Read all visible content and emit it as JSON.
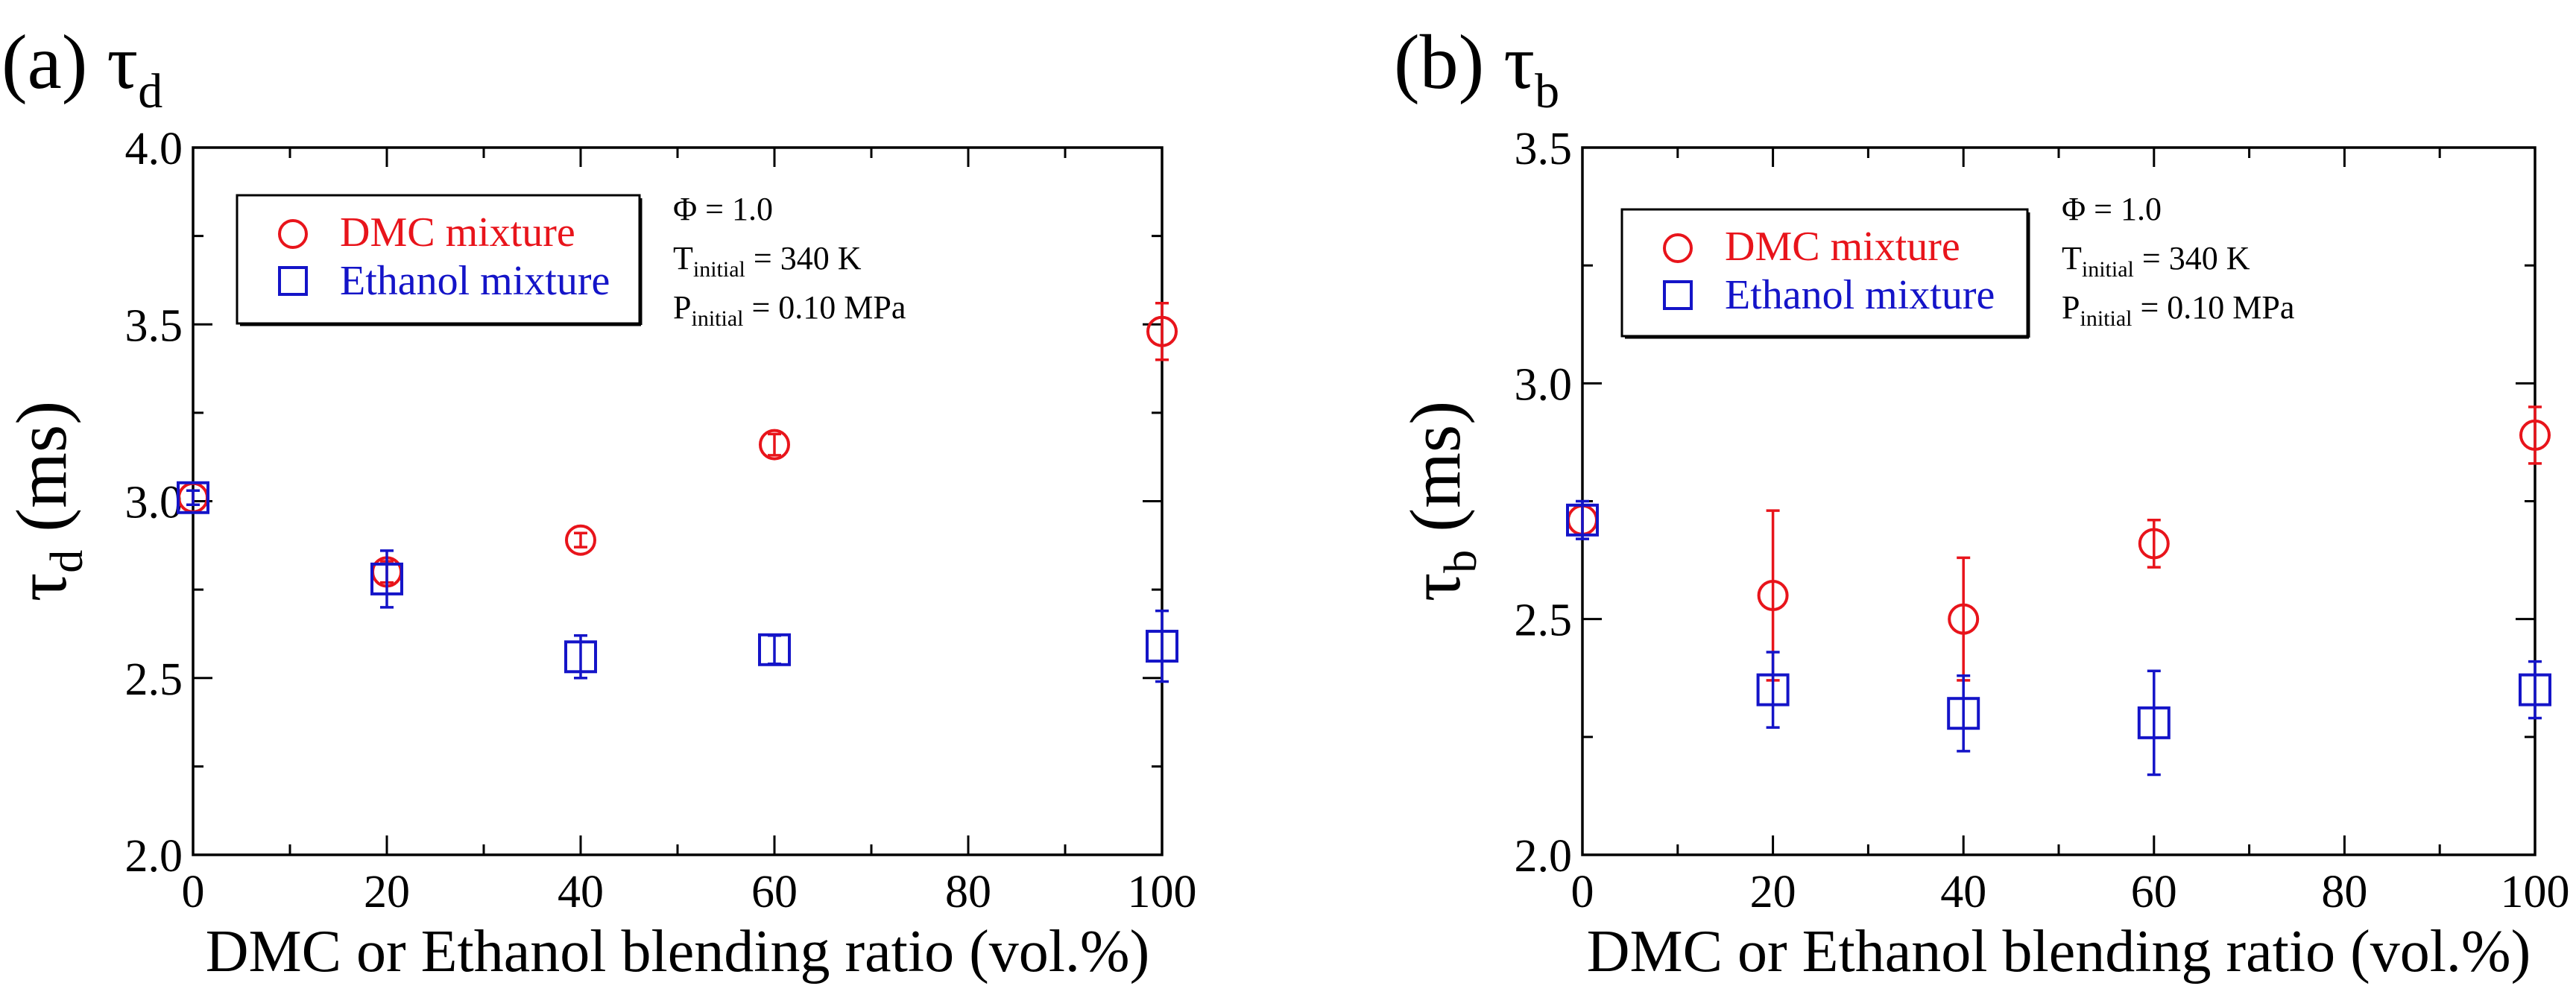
{
  "colors": {
    "dmc": "#e8141b",
    "ethanol": "#1414c8",
    "axis": "#000000"
  },
  "chart_data": [
    {
      "type": "scatter",
      "panel_label": "(a)",
      "panel_symbol": "τ",
      "panel_subscript": "d",
      "title": "(a) τd",
      "xlabel": "DMC or Ethanol blending ratio (vol.%)",
      "ylabel": "τd (ms)",
      "ylabel_symbol": "τ",
      "ylabel_subscript": "d",
      "ylabel_unit": "(ms)",
      "xlim": [
        0,
        100
      ],
      "ylim": [
        2.0,
        4.0
      ],
      "xticks": [
        "0",
        "20",
        "40",
        "60",
        "80",
        "100"
      ],
      "yticks": [
        "2.0",
        "2.5",
        "3.0",
        "3.5",
        "4.0"
      ],
      "legend": [
        "DMC mixture",
        "Ethanol mixture"
      ],
      "conditions": {
        "phi": "Φ = 1.0",
        "t_prefix": "T",
        "t_sub": "initial",
        "t_value": " = 340 K",
        "p_prefix": "P",
        "p_sub": "initial",
        "p_value": " = 0.10 MPa"
      },
      "series": [
        {
          "name": "DMC mixture",
          "marker": "circle",
          "points": [
            {
              "x": 0,
              "y": 3.01,
              "err": 0.02
            },
            {
              "x": 20,
              "y": 2.8,
              "err": 0.03
            },
            {
              "x": 40,
              "y": 2.89,
              "err": 0.02
            },
            {
              "x": 60,
              "y": 3.16,
              "err": 0.03
            },
            {
              "x": 100,
              "y": 3.48,
              "err": 0.08
            }
          ]
        },
        {
          "name": "Ethanol mixture",
          "marker": "square",
          "points": [
            {
              "x": 0,
              "y": 3.01,
              "err": 0.02
            },
            {
              "x": 20,
              "y": 2.78,
              "err": 0.08
            },
            {
              "x": 40,
              "y": 2.56,
              "err": 0.06
            },
            {
              "x": 60,
              "y": 2.58,
              "err": 0.04
            },
            {
              "x": 100,
              "y": 2.59,
              "err": 0.1
            }
          ]
        }
      ]
    },
    {
      "type": "scatter",
      "panel_label": "(b)",
      "panel_symbol": "τ",
      "panel_subscript": "b",
      "title": "(b) τb",
      "xlabel": "DMC or Ethanol blending ratio (vol.%)",
      "ylabel": "τb (ms)",
      "ylabel_symbol": "τ",
      "ylabel_subscript": "b",
      "ylabel_unit": "(ms)",
      "xlim": [
        0,
        100
      ],
      "ylim": [
        2.0,
        3.5
      ],
      "xticks": [
        "0",
        "20",
        "40",
        "60",
        "80",
        "100"
      ],
      "yticks": [
        "2.0",
        "2.5",
        "3.0",
        "3.5"
      ],
      "legend": [
        "DMC mixture",
        "Ethanol mixture"
      ],
      "conditions": {
        "phi": "Φ = 1.0",
        "t_prefix": "T",
        "t_sub": "initial",
        "t_value": " = 340 K",
        "p_prefix": "P",
        "p_sub": "initial",
        "p_value": " = 0.10 MPa"
      },
      "series": [
        {
          "name": "DMC mixture",
          "marker": "circle",
          "points": [
            {
              "x": 0,
              "y": 2.71,
              "err": 0.03
            },
            {
              "x": 20,
              "y": 2.55,
              "err": 0.18
            },
            {
              "x": 40,
              "y": 2.5,
              "err": 0.13
            },
            {
              "x": 60,
              "y": 2.66,
              "err": 0.05
            },
            {
              "x": 100,
              "y": 2.89,
              "err": 0.06
            }
          ]
        },
        {
          "name": "Ethanol mixture",
          "marker": "square",
          "points": [
            {
              "x": 0,
              "y": 2.71,
              "err": 0.04
            },
            {
              "x": 20,
              "y": 2.35,
              "err": 0.08
            },
            {
              "x": 40,
              "y": 2.3,
              "err": 0.08
            },
            {
              "x": 60,
              "y": 2.28,
              "err": 0.11
            },
            {
              "x": 100,
              "y": 2.35,
              "err": 0.06
            }
          ]
        }
      ]
    }
  ]
}
